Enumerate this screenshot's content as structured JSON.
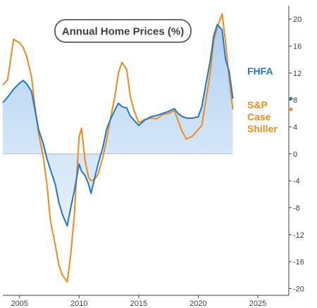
{
  "chart_data": {
    "type": "line",
    "title": "Annual Home Prices (%)",
    "xlabel": "",
    "ylabel": "",
    "xlim": [
      2003.6,
      2027.6
    ],
    "ylim": [
      -21,
      22
    ],
    "x_ticks": [
      "2005",
      "2010",
      "2015",
      "2020",
      "2025"
    ],
    "y_ticks": [
      "-20",
      "-16",
      "-12",
      "-8",
      "-4",
      "0",
      "4",
      "8",
      "12",
      "16",
      "20"
    ],
    "grid": false,
    "legend": "right, inline labels",
    "colors": {
      "fhfa": "#1f78c8",
      "fhfa_fill": "#cfe3f7",
      "case_shiller": "#f08a1c",
      "axis": "#404040"
    },
    "series": [
      {
        "name": "FHFA",
        "last_value": 8.2,
        "x": [
          2003.6,
          2004.0,
          2004.5,
          2005.0,
          2005.3,
          2005.6,
          2006.0,
          2006.3,
          2006.6,
          2007.0,
          2007.3,
          2007.6,
          2008.0,
          2008.3,
          2008.6,
          2009.0,
          2009.3,
          2009.6,
          2010.0,
          2010.2,
          2010.5,
          2010.8,
          2011.0,
          2011.3,
          2011.6,
          2012.0,
          2012.3,
          2012.6,
          2013.0,
          2013.3,
          2013.6,
          2014.0,
          2014.3,
          2014.6,
          2015.0,
          2015.5,
          2016.0,
          2016.5,
          2017.0,
          2017.5,
          2018.0,
          2018.3,
          2018.6,
          2019.0,
          2019.5,
          2020.0,
          2020.3,
          2020.6,
          2021.0,
          2021.3,
          2021.6,
          2022.0,
          2022.3,
          2022.6,
          2022.9
        ],
        "values": [
          7.6,
          8.4,
          9.6,
          10.5,
          10.9,
          10.4,
          9.3,
          6.5,
          3.6,
          1.5,
          -0.7,
          -2.4,
          -4.5,
          -7.2,
          -9.0,
          -10.7,
          -8.0,
          -5.5,
          -1.5,
          -2.6,
          -3.2,
          -4.5,
          -5.9,
          -3.6,
          -1.5,
          1.0,
          3.6,
          5.0,
          6.5,
          7.5,
          7.0,
          6.8,
          5.6,
          5.0,
          4.2,
          5.0,
          5.5,
          5.7,
          6.0,
          6.3,
          6.7,
          6.0,
          5.6,
          5.3,
          5.3,
          5.5,
          7.0,
          10.0,
          13.8,
          17.5,
          19.2,
          18.4,
          14.0,
          12.2,
          8.2
        ]
      },
      {
        "name": "S&P Case Shiller",
        "last_value": 6.6,
        "x": [
          2003.6,
          2004.0,
          2004.5,
          2005.0,
          2005.3,
          2005.6,
          2006.0,
          2006.3,
          2006.6,
          2007.0,
          2007.3,
          2007.6,
          2008.0,
          2008.3,
          2008.6,
          2009.0,
          2009.3,
          2009.6,
          2010.0,
          2010.2,
          2010.5,
          2010.8,
          2011.0,
          2011.3,
          2011.6,
          2012.0,
          2012.3,
          2012.6,
          2013.0,
          2013.3,
          2013.6,
          2014.0,
          2014.3,
          2014.6,
          2015.0,
          2015.5,
          2016.0,
          2016.5,
          2017.0,
          2017.5,
          2018.0,
          2018.3,
          2018.6,
          2019.0,
          2019.5,
          2020.0,
          2020.3,
          2020.6,
          2021.0,
          2021.3,
          2021.6,
          2022.0,
          2022.3,
          2022.6,
          2022.9
        ],
        "values": [
          10.2,
          11.0,
          17.0,
          16.5,
          15.8,
          14.5,
          11.5,
          7.0,
          3.0,
          -0.5,
          -4.5,
          -10.0,
          -13.5,
          -16.5,
          -18.0,
          -19.0,
          -15.0,
          -9.0,
          2.5,
          3.8,
          -1.0,
          -3.5,
          -4.0,
          -3.8,
          -3.0,
          -0.5,
          2.0,
          5.0,
          8.5,
          12.0,
          13.6,
          12.5,
          8.5,
          6.5,
          4.6,
          5.1,
          5.3,
          5.2,
          5.8,
          6.0,
          6.4,
          5.0,
          3.5,
          2.2,
          2.6,
          3.6,
          4.2,
          7.5,
          12.0,
          16.8,
          18.8,
          20.8,
          16.5,
          11.0,
          6.6
        ]
      }
    ]
  }
}
